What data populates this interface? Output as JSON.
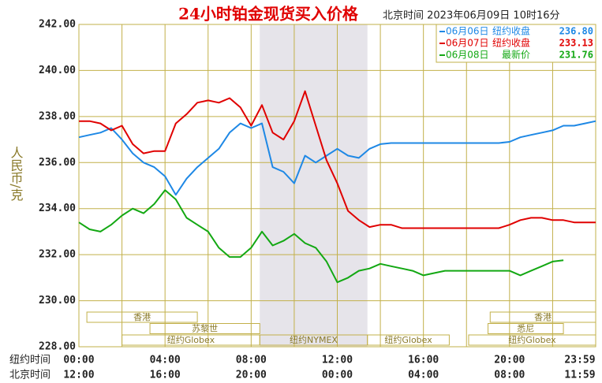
{
  "chart_data": {
    "type": "line",
    "title": "24小时铂金现货买入价格",
    "subtitle": "北京时间  2023年06月09日 10时16分",
    "y_label": "人民币/克",
    "x_row_label": "纽约时间",
    "x2_row_label": "北京时间",
    "x": [
      0,
      0.5,
      1,
      1.5,
      2,
      2.5,
      3,
      3.5,
      4,
      4.5,
      5,
      5.5,
      6,
      6.5,
      7,
      7.5,
      8,
      8.5,
      9,
      9.5,
      10,
      10.5,
      11,
      11.5,
      12,
      12.5,
      13,
      13.5,
      14,
      14.5,
      15,
      15.5,
      16,
      16.5,
      17,
      17.5,
      18,
      18.5,
      19,
      19.5,
      20,
      20.5,
      21,
      21.5,
      22,
      22.5,
      23,
      23.5,
      24
    ],
    "series": [
      {
        "name": "06月06日",
        "label": "纽约收盘",
        "last": "236.80",
        "color": "#1e88e5",
        "values": [
          237.1,
          237.2,
          237.3,
          237.5,
          237.0,
          236.4,
          236.0,
          235.8,
          235.4,
          234.6,
          235.3,
          235.8,
          236.2,
          236.6,
          237.3,
          237.7,
          237.5,
          237.7,
          235.8,
          235.6,
          235.1,
          236.3,
          236.0,
          236.3,
          236.6,
          236.3,
          236.2,
          236.6,
          236.8,
          236.85,
          236.85,
          236.85,
          236.85,
          236.85,
          236.85,
          236.85,
          236.85,
          236.85,
          236.85,
          236.85,
          236.9,
          237.1,
          237.2,
          237.3,
          237.4,
          237.6,
          237.6,
          237.7,
          237.8
        ]
      },
      {
        "name": "06月07日",
        "label": "纽约收盘",
        "last": "233.13",
        "color": "#e00000",
        "values": [
          237.8,
          237.8,
          237.7,
          237.4,
          237.6,
          236.8,
          236.4,
          236.5,
          236.5,
          237.7,
          238.1,
          238.6,
          238.7,
          238.6,
          238.8,
          238.4,
          237.6,
          238.5,
          237.3,
          237.0,
          237.8,
          239.1,
          237.6,
          236.1,
          235.1,
          233.9,
          233.5,
          233.2,
          233.3,
          233.3,
          233.15,
          233.15,
          233.15,
          233.15,
          233.15,
          233.15,
          233.15,
          233.15,
          233.15,
          233.15,
          233.3,
          233.5,
          233.6,
          233.6,
          233.5,
          233.5,
          233.4,
          233.4,
          233.4
        ]
      },
      {
        "name": "06月08日",
        "label": "最新价",
        "last": "231.76",
        "color": "#13a813",
        "values": [
          233.4,
          233.1,
          233.0,
          233.3,
          233.7,
          234.0,
          233.8,
          234.2,
          234.8,
          234.4,
          233.6,
          233.3,
          233.0,
          232.3,
          231.9,
          231.9,
          232.3,
          233.0,
          232.4,
          232.6,
          232.9,
          232.5,
          232.3,
          231.7,
          230.8,
          231.0,
          231.3,
          231.4,
          231.6,
          231.5,
          231.4,
          231.3,
          231.1,
          231.2,
          231.3,
          231.3,
          231.3,
          231.3,
          231.3,
          231.3,
          231.3,
          231.1,
          231.3,
          231.5,
          231.7,
          231.76,
          null,
          null,
          null
        ]
      }
    ],
    "xlim": [
      0,
      24
    ],
    "xticks": [
      {
        "value": 0,
        "label": "00:00"
      },
      {
        "value": 4,
        "label": "04:00"
      },
      {
        "value": 8,
        "label": "08:00"
      },
      {
        "value": 12,
        "label": "12:00"
      },
      {
        "value": 16,
        "label": "16:00"
      },
      {
        "value": 20,
        "label": "20:00"
      },
      {
        "value": 23.983,
        "label": "23:59"
      }
    ],
    "x2tick_labels": [
      "12:00",
      "16:00",
      "20:00",
      "00:00",
      "04:00",
      "08:00",
      "11:59"
    ],
    "xgrid": [
      0,
      2,
      4,
      6,
      8,
      10,
      12,
      14,
      16,
      18,
      20,
      22,
      24
    ],
    "ylim": [
      228,
      242
    ],
    "yticks": [
      {
        "value": 228,
        "label": "228.00"
      },
      {
        "value": 230,
        "label": "230.00"
      },
      {
        "value": 232,
        "label": "232.00"
      },
      {
        "value": 234,
        "label": "234.00"
      },
      {
        "value": 236,
        "label": "236.00"
      },
      {
        "value": 238,
        "label": "238.00"
      },
      {
        "value": 240,
        "label": "240.00"
      },
      {
        "value": 242,
        "label": "242.00"
      }
    ],
    "grid": true,
    "sessions": [
      [
        {
          "label": "香港",
          "start": 0.37,
          "end": 5.5
        },
        {
          "label": "香港",
          "start": 19.1,
          "end": 24
        }
      ],
      [
        {
          "label": "苏黎世",
          "start": 3.3,
          "end": 8.4
        },
        {
          "label": "悉尼",
          "start": 19.0,
          "end": 22.5
        }
      ],
      [
        {
          "label": "纽约Globex",
          "start": 2.0,
          "end": 8.4
        },
        {
          "label": "纽约NYMEX",
          "start": 8.4,
          "end": 13.4
        },
        {
          "label": "纽约Globex",
          "start": 13.4,
          "end": 17.2
        },
        {
          "label": "纽约Globex",
          "start": 18.1,
          "end": 24
        }
      ]
    ]
  }
}
